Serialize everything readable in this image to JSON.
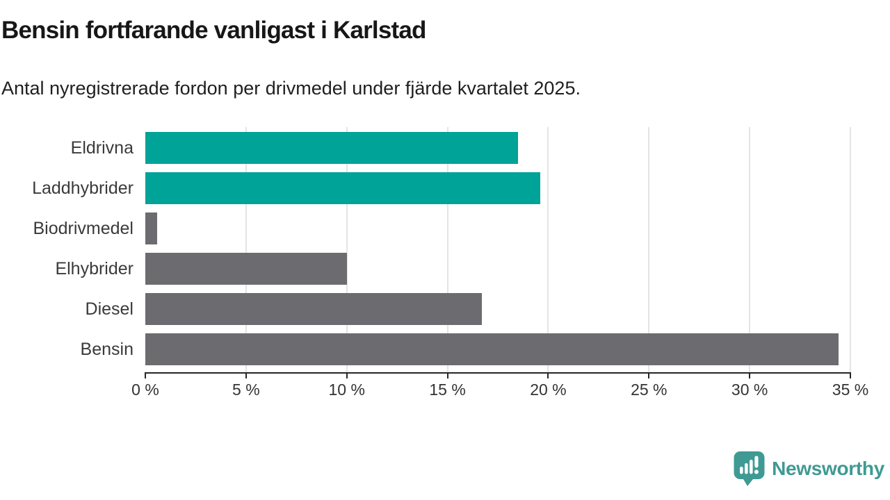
{
  "chart_data": {
    "type": "bar",
    "orientation": "horizontal",
    "title": "Bensin fortfarande vanligast i Karlstad",
    "subtitle": "Antal nyregistrerade fordon per drivmedel under fjärde kvartalet 2025.",
    "categories": [
      "Eldrivna",
      "Laddhybrider",
      "Biodrivmedel",
      "Elhybrider",
      "Diesel",
      "Bensin"
    ],
    "values": [
      18.5,
      19.6,
      0.6,
      10.0,
      16.7,
      34.4
    ],
    "unit": "%",
    "xlim": [
      0,
      35
    ],
    "x_ticks": [
      0,
      5,
      10,
      15,
      20,
      25,
      30,
      35
    ],
    "x_tick_labels": [
      "0 %",
      "5 %",
      "10 %",
      "15 %",
      "20 %",
      "25 %",
      "30 %",
      "35 %"
    ],
    "bar_colors": [
      "#00a398",
      "#00a398",
      "#6b6b70",
      "#6b6b70",
      "#6b6b70",
      "#6b6b70"
    ],
    "grid": "vertical-light-gray",
    "legend": "none"
  },
  "colors": {
    "highlight_teal": "#00a398",
    "neutral_gray": "#6b6b70",
    "gridline": "#e4e4e4",
    "axis": "#262626"
  },
  "branding": {
    "logo_text": "Newsworthy",
    "logo_color": "#3f9a94",
    "logo_icon": "speech-bubble-with-bar-chart-and-exclamation"
  }
}
